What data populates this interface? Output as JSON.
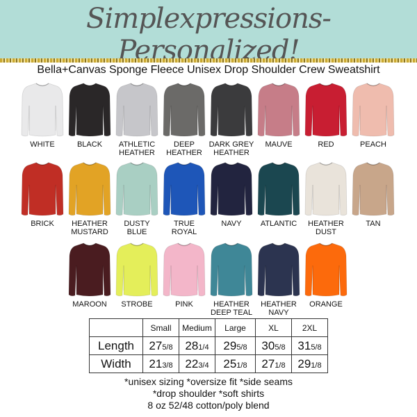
{
  "header": {
    "title": "Simplexpressions- Personalized!",
    "subtitle": "Bella+Canvas Sponge Fleece Unisex Drop Shoulder Crew Sweatshirt",
    "banner_color": "#b2ddd7"
  },
  "colors": [
    [
      {
        "label": "WHITE",
        "hex": "#e9e9ea"
      },
      {
        "label": "BLACK",
        "hex": "#2a2728"
      },
      {
        "label": "ATHLETIC HEATHER",
        "hex": "#c6c6ca"
      },
      {
        "label": "DEEP HEATHER",
        "hex": "#6b6a68"
      },
      {
        "label": "DARK GREY HEATHER",
        "hex": "#3b3b3d"
      },
      {
        "label": "MAUVE",
        "hex": "#c67d88"
      },
      {
        "label": "RED",
        "hex": "#c81e32"
      },
      {
        "label": "PEACH",
        "hex": "#efbcae"
      }
    ],
    [
      {
        "label": "BRICK",
        "hex": "#c02e25"
      },
      {
        "label": "HEATHER MUSTARD",
        "hex": "#e2a325"
      },
      {
        "label": "DUSTY BLUE",
        "hex": "#a9cfc3"
      },
      {
        "label": "TRUE ROYAL",
        "hex": "#1e56b8"
      },
      {
        "label": "NAVY",
        "hex": "#22243f"
      },
      {
        "label": "ATLANTIC",
        "hex": "#1b4750"
      },
      {
        "label": "HEATHER DUST",
        "hex": "#e9e3da"
      },
      {
        "label": "TAN",
        "hex": "#c8a68a"
      }
    ],
    [
      {
        "label": "MAROON",
        "hex": "#4a1c20"
      },
      {
        "label": "STROBE",
        "hex": "#e4ee5a"
      },
      {
        "label": "PINK",
        "hex": "#f3b6c9"
      },
      {
        "label": "HEATHER DEEP TEAL",
        "hex": "#3f8797"
      },
      {
        "label": "HEATHER NAVY",
        "hex": "#2c3450"
      },
      {
        "label": "ORANGE",
        "hex": "#fc6a0c"
      }
    ]
  ],
  "size_table": {
    "headers": [
      "",
      "Small",
      "Medium",
      "Large",
      "XL",
      "2XL"
    ],
    "rows": [
      {
        "label": "Length",
        "values": [
          [
            "27",
            "5/8"
          ],
          [
            "28",
            "1/4"
          ],
          [
            "29",
            "5/8"
          ],
          [
            "30",
            "5/8"
          ],
          [
            "31",
            "5/8"
          ]
        ]
      },
      {
        "label": "Width",
        "values": [
          [
            "21",
            "3/8"
          ],
          [
            "22",
            "3/4"
          ],
          [
            "25",
            "1/8"
          ],
          [
            "27",
            "1/8"
          ],
          [
            "29",
            "1/8"
          ]
        ]
      }
    ]
  },
  "notes": [
    "*unisex sizing *oversize fit *side seams",
    "*drop shoulder *soft shirts",
    "8 oz 52/48 cotton/poly blend"
  ]
}
